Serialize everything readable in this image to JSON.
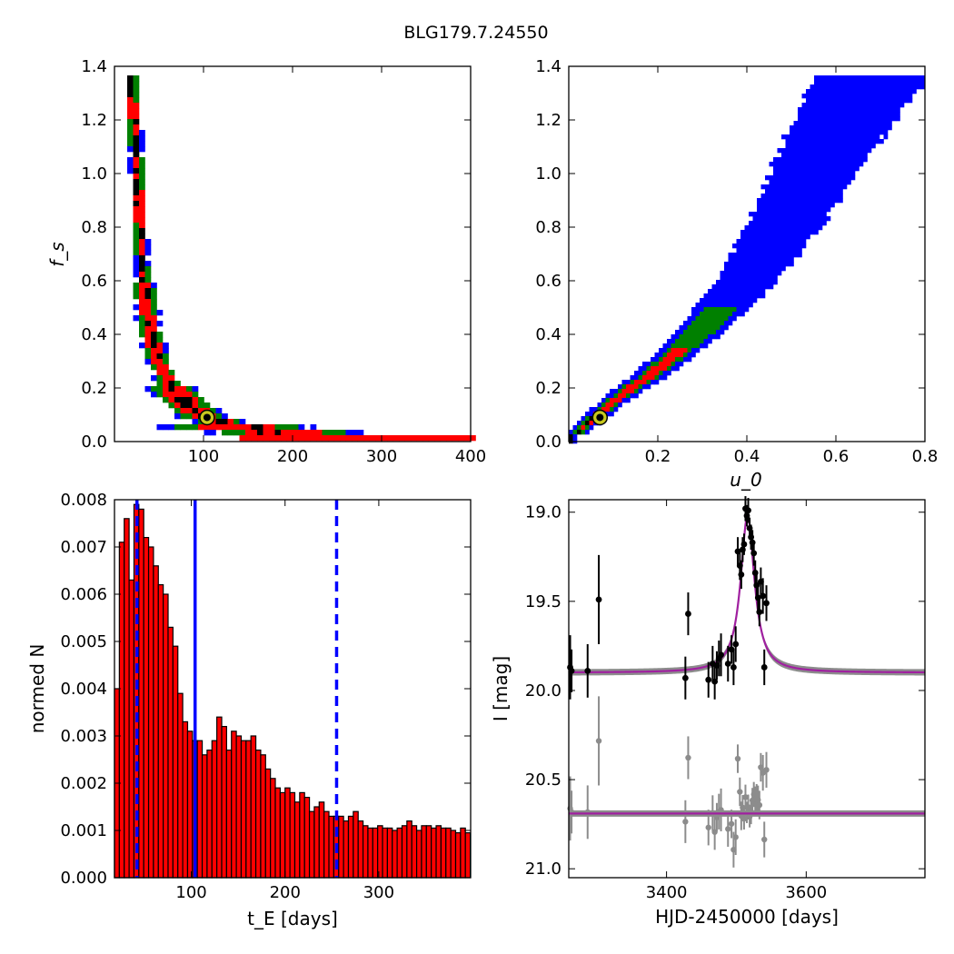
{
  "figure": {
    "title": "BLG179.7.24550"
  },
  "chart_data": [
    {
      "type": "heatmap",
      "panel": "top-left",
      "xlabel": "",
      "ylabel": "f_s",
      "xlim": [
        0,
        400
      ],
      "ylim": [
        0,
        1.4
      ],
      "xticks": [
        100,
        200,
        300,
        400
      ],
      "yticks": [
        0.0,
        0.2,
        0.4,
        0.6,
        0.8,
        1.0,
        1.2,
        1.4
      ],
      "level_colors": [
        "#0000ff",
        "#008000",
        "#ff0000",
        "#000000"
      ],
      "best_fit": {
        "x": 104,
        "y": 0.09
      },
      "curve_tE_fs": [
        [
          18,
          1.36
        ],
        [
          25,
          1.0
        ],
        [
          30,
          0.7
        ],
        [
          35,
          0.5
        ],
        [
          45,
          0.33
        ],
        [
          60,
          0.22
        ],
        [
          80,
          0.14
        ],
        [
          100,
          0.09
        ],
        [
          140,
          0.05
        ],
        [
          200,
          0.03
        ],
        [
          300,
          0.02
        ],
        [
          400,
          0.015
        ]
      ]
    },
    {
      "type": "heatmap",
      "panel": "top-right",
      "xlabel": "u_0",
      "ylabel": "",
      "xlim": [
        0,
        0.8
      ],
      "ylim": [
        0,
        1.4
      ],
      "xticks": [
        0.2,
        0.4,
        0.6,
        0.8
      ],
      "yticks": [
        0.0,
        0.2,
        0.4,
        0.6,
        0.8,
        1.0,
        1.2,
        1.4
      ],
      "level_colors": [
        "#0000ff",
        "#008000",
        "#ff0000",
        "#000000"
      ],
      "best_fit": {
        "x": 0.07,
        "y": 0.09
      },
      "ridge_u0_fs": [
        [
          0.01,
          0.02
        ],
        [
          0.05,
          0.08
        ],
        [
          0.1,
          0.15
        ],
        [
          0.2,
          0.27
        ],
        [
          0.3,
          0.42
        ],
        [
          0.4,
          0.6
        ],
        [
          0.5,
          0.85
        ],
        [
          0.6,
          1.15
        ],
        [
          0.68,
          1.36
        ]
      ]
    },
    {
      "type": "bar",
      "panel": "bottom-left",
      "xlabel": "t_E [days]",
      "ylabel": "normed N",
      "xlim": [
        18,
        398
      ],
      "ylim": [
        0,
        0.008
      ],
      "xticks": [
        100,
        200,
        300
      ],
      "yticks": [
        0.0,
        0.001,
        0.002,
        0.003,
        0.004,
        0.005,
        0.006,
        0.007,
        0.008
      ],
      "bin_start": 18,
      "bin_width": 5.2,
      "values": [
        0.004,
        0.0071,
        0.0076,
        0.0063,
        0.0079,
        0.0078,
        0.0072,
        0.007,
        0.0066,
        0.0062,
        0.006,
        0.0053,
        0.0049,
        0.0039,
        0.0033,
        0.0031,
        0.0029,
        0.0029,
        0.0026,
        0.0027,
        0.0029,
        0.0034,
        0.0032,
        0.0027,
        0.0031,
        0.003,
        0.0029,
        0.0029,
        0.003,
        0.0027,
        0.0026,
        0.0023,
        0.0021,
        0.0019,
        0.0018,
        0.0019,
        0.0018,
        0.0016,
        0.0018,
        0.0017,
        0.0014,
        0.0015,
        0.0016,
        0.0014,
        0.0013,
        0.0013,
        0.0013,
        0.0012,
        0.0013,
        0.0014,
        0.0012,
        0.0011,
        0.00105,
        0.00105,
        0.0011,
        0.00105,
        0.00105,
        0.001,
        0.00105,
        0.0011,
        0.0012,
        0.0011,
        0.001,
        0.0011,
        0.0011,
        0.00105,
        0.0011,
        0.00105,
        0.00105,
        0.001,
        0.00095,
        0.00105,
        0.00095
      ],
      "bar_color": "#ff0000",
      "vlines": [
        {
          "x": 42,
          "style": "dashed",
          "color": "#0000ff"
        },
        {
          "x": 104,
          "style": "solid",
          "color": "#0000ff"
        },
        {
          "x": 255,
          "style": "dashed",
          "color": "#0000ff"
        }
      ]
    },
    {
      "type": "scatter",
      "panel": "bottom-right",
      "xlabel": "HJD-2450000 [days]",
      "ylabel": "I [mag]",
      "xlim": [
        3260,
        3770
      ],
      "ylim": [
        21.05,
        18.93
      ],
      "xticks": [
        3400,
        3600
      ],
      "yticks": [
        19.0,
        19.5,
        20.0,
        20.5,
        21.0
      ],
      "model": {
        "t0": 3516,
        "baseline": 19.9,
        "peak": 19.02,
        "width": 12,
        "color": "#a020a0"
      },
      "residual_baseline": 20.69,
      "residual_offset": 0.79,
      "points": [
        [
          3262,
          19.87,
          0.18
        ],
        [
          3264,
          19.89,
          0.12
        ],
        [
          3287,
          19.89,
          0.15
        ],
        [
          3303,
          19.49,
          0.25
        ],
        [
          3427,
          19.93,
          0.12
        ],
        [
          3431,
          19.57,
          0.12
        ],
        [
          3460,
          19.94,
          0.1
        ],
        [
          3466,
          19.85,
          0.1
        ],
        [
          3469,
          19.95,
          0.1
        ],
        [
          3472,
          19.86,
          0.08
        ],
        [
          3475,
          19.82,
          0.1
        ],
        [
          3478,
          19.8,
          0.12
        ],
        [
          3488,
          19.85,
          0.1
        ],
        [
          3493,
          19.77,
          0.08
        ],
        [
          3496,
          19.87,
          0.1
        ],
        [
          3499,
          19.74,
          0.1
        ],
        [
          3502,
          19.22,
          0.08
        ],
        [
          3505,
          19.3,
          0.08
        ],
        [
          3507,
          19.35,
          0.08
        ],
        [
          3509,
          19.21,
          0.07
        ],
        [
          3511,
          19.18,
          0.06
        ],
        [
          3513,
          18.98,
          0.07
        ],
        [
          3515,
          19.02,
          0.06
        ],
        [
          3517,
          18.99,
          0.07
        ],
        [
          3519,
          19.09,
          0.06
        ],
        [
          3521,
          19.14,
          0.07
        ],
        [
          3523,
          19.17,
          0.07
        ],
        [
          3525,
          19.23,
          0.07
        ],
        [
          3527,
          19.34,
          0.07
        ],
        [
          3529,
          19.41,
          0.08
        ],
        [
          3531,
          19.48,
          0.08
        ],
        [
          3533,
          19.56,
          0.08
        ],
        [
          3535,
          19.39,
          0.08
        ],
        [
          3538,
          19.47,
          0.1
        ],
        [
          3540,
          19.87,
          0.1
        ],
        [
          3543,
          19.51,
          0.1
        ]
      ],
      "colors": {
        "data": "#000000",
        "band": "#8c8c8c",
        "residual": "#8c8c8c"
      }
    }
  ]
}
